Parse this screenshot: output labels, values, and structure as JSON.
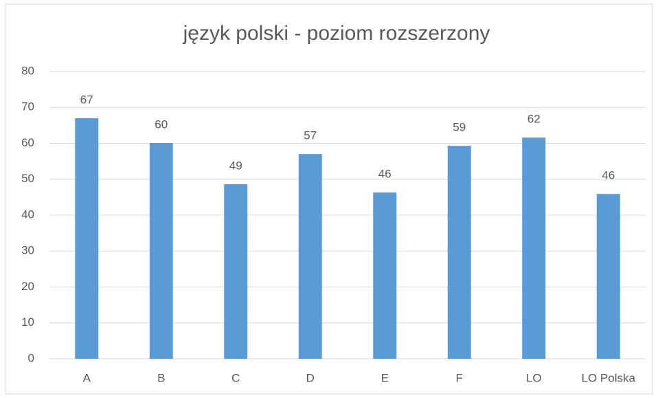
{
  "chart_data": {
    "type": "bar",
    "title": "język polski - poziom rozszerzony",
    "categories": [
      "A",
      "B",
      "C",
      "D",
      "E",
      "F",
      "LO",
      "LO Polska"
    ],
    "values": [
      67.0,
      60.1,
      48.6,
      57.0,
      46.3,
      59.3,
      61.6,
      45.9
    ],
    "value_labels": [
      "67",
      "60",
      "49",
      "57",
      "46",
      "59",
      "62",
      "46"
    ],
    "color": "#5b9bd5",
    "ylim": [
      0,
      80
    ],
    "yticks": [
      0,
      10,
      20,
      30,
      40,
      50,
      60,
      70,
      80
    ],
    "grid": true
  }
}
